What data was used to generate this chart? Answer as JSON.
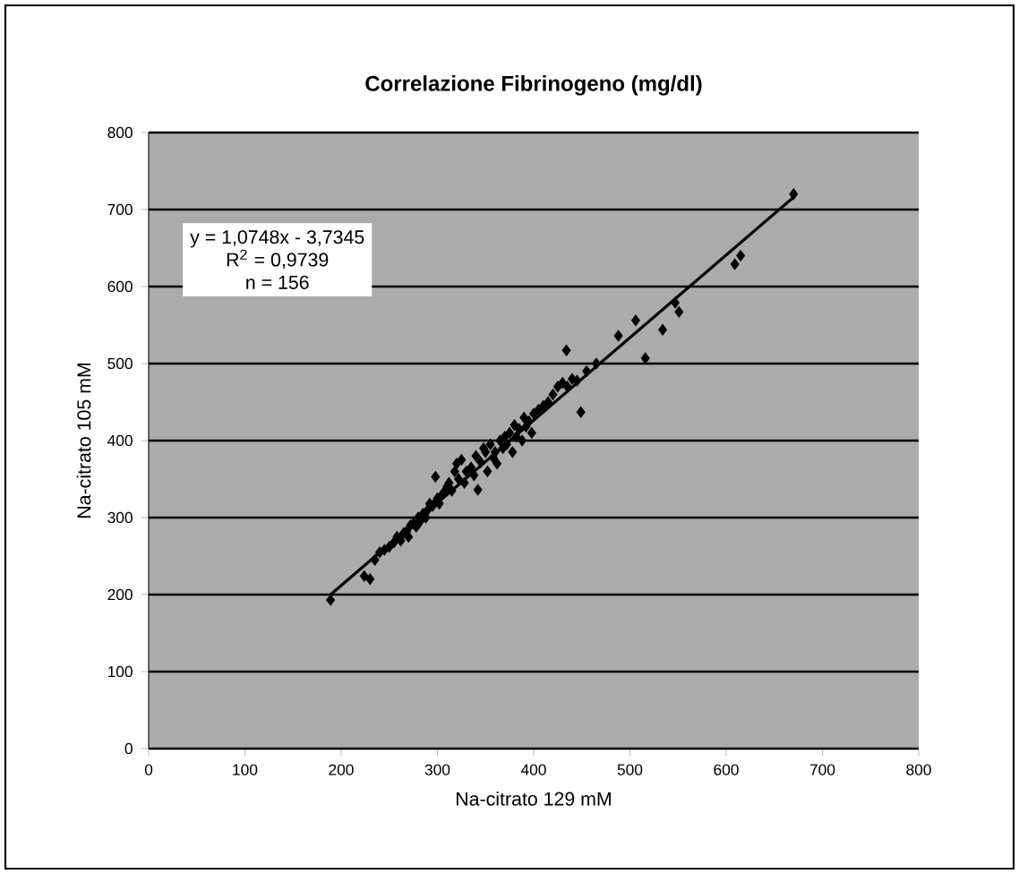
{
  "chart_data": {
    "type": "scatter",
    "title": "Correlazione Fibrinogeno (mg/dl)",
    "xlabel": "Na-citrato 129 mM",
    "ylabel": "Na-citrato 105 mM",
    "annotations": [
      "y = 1,0748x - 3,7345",
      "R$^{2}$ = 0,9739",
      "n = 156"
    ],
    "xlim": [
      0,
      800
    ],
    "ylim": [
      0,
      800
    ],
    "xticks": [
      0,
      100,
      200,
      300,
      400,
      500,
      600,
      700,
      800
    ],
    "yticks": [
      0,
      100,
      200,
      300,
      400,
      500,
      600,
      700,
      800
    ],
    "grid": "y",
    "marker": "diamond",
    "series": [
      {
        "color": "#000000",
        "x": [
          189,
          224,
          230,
          235,
          240,
          245,
          250,
          255,
          258,
          262,
          265,
          268,
          270,
          272,
          275,
          278,
          280,
          282,
          285,
          288,
          290,
          292,
          295,
          298,
          298,
          300,
          302,
          305,
          308,
          310,
          312,
          315,
          318,
          320,
          322,
          325,
          328,
          330,
          335,
          338,
          340,
          342,
          345,
          348,
          350,
          352,
          355,
          358,
          360,
          362,
          365,
          368,
          370,
          372,
          375,
          378,
          380,
          382,
          385,
          388,
          390,
          392,
          395,
          398,
          400,
          405,
          410,
          415,
          420,
          425,
          430,
          434,
          435,
          440,
          445,
          449,
          455,
          465,
          488,
          506,
          516,
          534,
          547,
          551,
          609,
          615,
          670
        ],
        "values": [
          193,
          224,
          220,
          245,
          255,
          258,
          262,
          268,
          275,
          270,
          280,
          282,
          275,
          290,
          292,
          288,
          300,
          295,
          305,
          300,
          310,
          318,
          315,
          320,
          353,
          325,
          318,
          330,
          335,
          340,
          345,
          335,
          360,
          370,
          350,
          375,
          345,
          360,
          365,
          355,
          380,
          336,
          372,
          390,
          385,
          360,
          395,
          378,
          385,
          370,
          400,
          390,
          405,
          395,
          410,
          385,
          420,
          405,
          415,
          400,
          430,
          418,
          425,
          410,
          435,
          440,
          445,
          450,
          460,
          470,
          475,
          517,
          470,
          480,
          478,
          437,
          490,
          500,
          536,
          556,
          507,
          544,
          579,
          567,
          629,
          640,
          720
        ]
      },
      {
        "type": "line",
        "marker": "none",
        "color": "#000000",
        "x": [
          189,
          670
        ],
        "values": [
          200,
          716
        ]
      }
    ]
  }
}
